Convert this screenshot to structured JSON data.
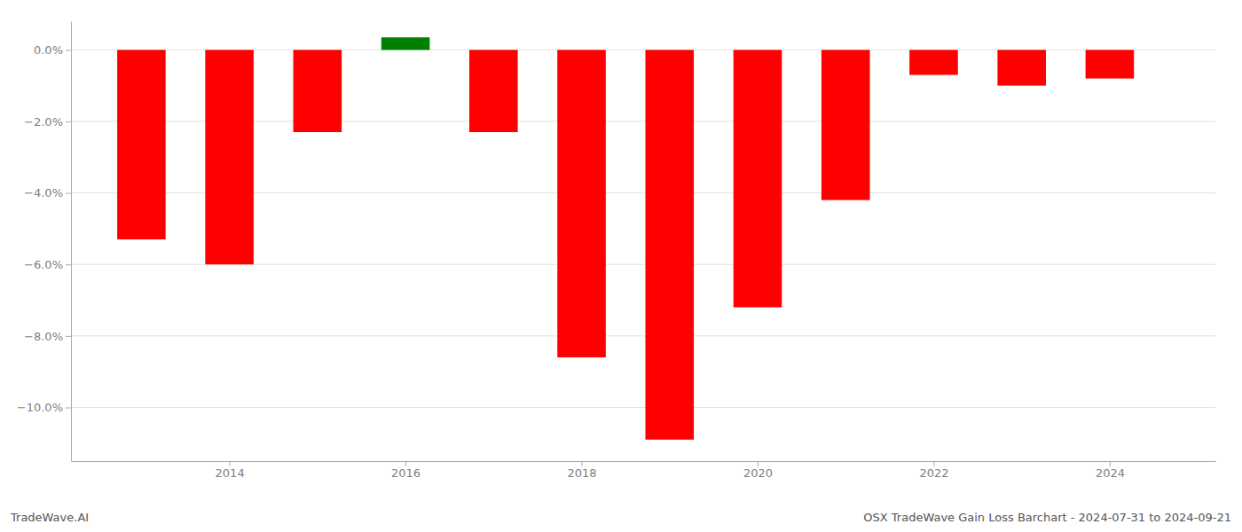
{
  "chart_data": {
    "type": "bar",
    "title": "OSX TradeWave Gain Loss Barchart - 2024-07-31 to 2024-09-21",
    "annotations": [
      "TradeWave.AI"
    ],
    "x": [
      2013,
      2014,
      2015,
      2016,
      2017,
      2018,
      2019,
      2020,
      2021,
      2022,
      2023,
      2024
    ],
    "values": [
      -5.3,
      -6.0,
      -2.3,
      0.35,
      -2.3,
      -8.6,
      -10.9,
      -7.2,
      -4.2,
      -0.7,
      -1.0,
      -0.8
    ],
    "colors": [
      "#ff0000",
      "#ff0000",
      "#ff0000",
      "#008000",
      "#ff0000",
      "#ff0000",
      "#ff0000",
      "#ff0000",
      "#ff0000",
      "#ff0000",
      "#ff0000",
      "#ff0000"
    ],
    "xlim": [
      2012.2,
      2025.2
    ],
    "xticks": [
      2014,
      2016,
      2018,
      2020,
      2022,
      2024
    ],
    "ylim": [
      -11.5,
      0.8
    ],
    "yticks": [
      {
        "value": 0.0,
        "label": "0.0%"
      },
      {
        "value": -2.0,
        "label": "−2.0%"
      },
      {
        "value": -4.0,
        "label": "−4.0%"
      },
      {
        "value": -6.0,
        "label": "−6.0%"
      },
      {
        "value": -8.0,
        "label": "−8.0%"
      },
      {
        "value": -10.0,
        "label": "−10.0%"
      }
    ],
    "grid": true
  }
}
